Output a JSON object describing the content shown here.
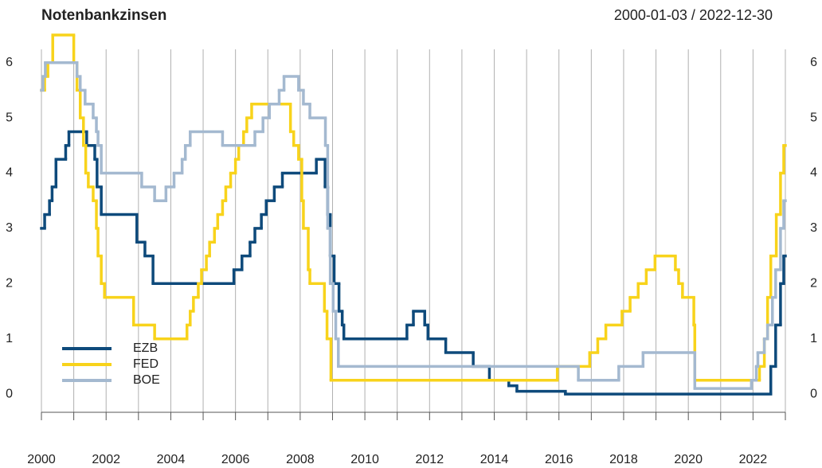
{
  "chart_data": {
    "type": "step",
    "title": "Notenbankzinsen",
    "subtitle": "2000-01-03 / 2022-12-30",
    "xlim": [
      2000,
      2023
    ],
    "xticks": [
      2000,
      2002,
      2004,
      2006,
      2008,
      2010,
      2012,
      2014,
      2016,
      2018,
      2020,
      2022
    ],
    "xminorticks": [
      2001,
      2003,
      2005,
      2007,
      2009,
      2011,
      2013,
      2015,
      2017,
      2019,
      2021,
      2023
    ],
    "ylim": [
      -0.33,
      6.5
    ],
    "yticks": [
      0,
      1,
      2,
      3,
      4,
      5,
      6
    ],
    "grid": true,
    "legend": "lower left",
    "series": [
      {
        "name": "EZB",
        "color": "#0e4a7b",
        "x": [
          2000.0,
          2000.1,
          2000.25,
          2000.33,
          2000.45,
          2000.75,
          2000.85,
          2001.4,
          2001.65,
          2001.72,
          2001.85,
          2002.95,
          2003.2,
          2003.45,
          2005.95,
          2006.2,
          2006.45,
          2006.6,
          2006.8,
          2006.95,
          2007.2,
          2007.45,
          2008.5,
          2008.77,
          2008.85,
          2008.93,
          2009.05,
          2009.2,
          2009.3,
          2009.35,
          2011.3,
          2011.5,
          2011.85,
          2011.95,
          2012.5,
          2013.35,
          2013.85,
          2014.45,
          2014.7,
          2016.2,
          2022.55,
          2022.7,
          2022.85,
          2022.95
        ],
        "values": [
          3.0,
          3.25,
          3.5,
          3.75,
          4.25,
          4.5,
          4.75,
          4.5,
          4.25,
          3.75,
          3.25,
          2.75,
          2.5,
          2.0,
          2.25,
          2.5,
          2.75,
          3.0,
          3.25,
          3.5,
          3.75,
          4.0,
          4.25,
          3.75,
          3.25,
          2.5,
          2.0,
          1.5,
          1.25,
          1.0,
          1.25,
          1.5,
          1.25,
          1.0,
          0.75,
          0.5,
          0.25,
          0.15,
          0.05,
          0.0,
          0.5,
          1.25,
          2.0,
          2.5
        ]
      },
      {
        "name": "FED",
        "color": "#f8d31b",
        "x": [
          2000.0,
          2000.1,
          2000.2,
          2000.35,
          2001.0,
          2001.1,
          2001.2,
          2001.3,
          2001.37,
          2001.45,
          2001.6,
          2001.7,
          2001.75,
          2001.85,
          2001.95,
          2002.85,
          2003.5,
          2004.5,
          2004.6,
          2004.7,
          2004.85,
          2004.95,
          2005.1,
          2005.2,
          2005.35,
          2005.45,
          2005.6,
          2005.7,
          2005.85,
          2006.0,
          2006.1,
          2006.25,
          2006.35,
          2006.5,
          2007.7,
          2007.8,
          2007.95,
          2008.05,
          2008.1,
          2008.25,
          2008.3,
          2008.75,
          2008.83,
          2008.95,
          2015.95,
          2016.95,
          2017.2,
          2017.45,
          2017.95,
          2018.2,
          2018.45,
          2018.7,
          2018.97,
          2019.6,
          2019.7,
          2019.82,
          2020.17,
          2020.2,
          2022.2,
          2022.35,
          2022.45,
          2022.55,
          2022.72,
          2022.85,
          2022.95
        ],
        "values": [
          5.5,
          5.75,
          6.0,
          6.5,
          6.0,
          5.5,
          5.0,
          4.5,
          4.0,
          3.75,
          3.5,
          3.0,
          2.5,
          2.0,
          1.75,
          1.25,
          1.0,
          1.25,
          1.5,
          1.75,
          2.0,
          2.25,
          2.5,
          2.75,
          3.0,
          3.25,
          3.5,
          3.75,
          4.0,
          4.25,
          4.5,
          4.75,
          5.0,
          5.25,
          4.75,
          4.5,
          4.25,
          3.5,
          3.0,
          2.25,
          2.0,
          1.5,
          1.0,
          0.25,
          0.5,
          0.75,
          1.0,
          1.25,
          1.5,
          1.75,
          2.0,
          2.25,
          2.5,
          2.25,
          2.0,
          1.75,
          1.25,
          0.25,
          0.5,
          1.0,
          1.75,
          2.5,
          3.25,
          4.0,
          4.5
        ]
      },
      {
        "name": "BOE",
        "color": "#a4b9d0",
        "x": [
          2000.0,
          2000.05,
          2000.12,
          2001.1,
          2001.2,
          2001.35,
          2001.6,
          2001.7,
          2001.75,
          2001.85,
          2003.1,
          2003.5,
          2003.85,
          2004.1,
          2004.35,
          2004.45,
          2004.6,
          2005.6,
          2006.6,
          2006.85,
          2007.05,
          2007.35,
          2007.5,
          2007.95,
          2008.1,
          2008.3,
          2008.78,
          2008.85,
          2008.93,
          2009.02,
          2009.1,
          2009.18,
          2016.6,
          2017.85,
          2018.6,
          2020.2,
          2021.95,
          2022.1,
          2022.15,
          2022.35,
          2022.45,
          2022.6,
          2022.7,
          2022.85,
          2022.95
        ],
        "values": [
          5.5,
          5.75,
          6.0,
          5.75,
          5.5,
          5.25,
          5.0,
          4.75,
          4.5,
          4.0,
          3.75,
          3.5,
          3.75,
          4.0,
          4.25,
          4.5,
          4.75,
          4.5,
          4.75,
          5.0,
          5.25,
          5.5,
          5.75,
          5.5,
          5.25,
          5.0,
          4.5,
          3.0,
          2.0,
          1.5,
          1.0,
          0.5,
          0.25,
          0.5,
          0.75,
          0.1,
          0.25,
          0.5,
          0.75,
          1.0,
          1.25,
          1.75,
          2.25,
          3.0,
          3.5
        ]
      }
    ]
  }
}
